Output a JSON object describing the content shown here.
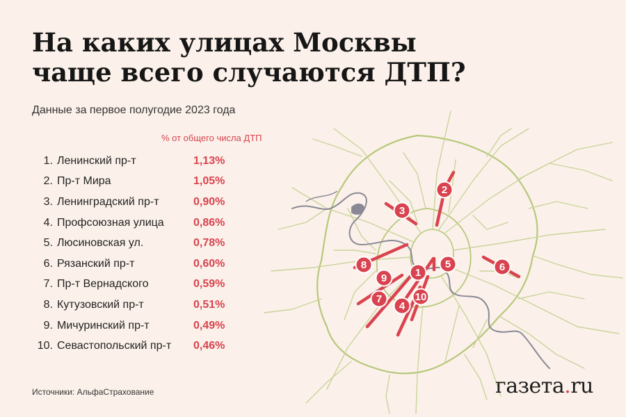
{
  "title_line1": "На каких улицах Москвы",
  "title_line2": "чаще всего случаются ДТП?",
  "subtitle": "Данные за первое полугодие 2023 года",
  "unit_note": "% от общего числа ДТП",
  "streets": [
    {
      "rank": "1.",
      "name": "Ленинский пр-т",
      "share": "1,13%",
      "share_value": 1.13,
      "badge": "1"
    },
    {
      "rank": "2.",
      "name": "Пр-т Мира",
      "share": "1,05%",
      "share_value": 1.05,
      "badge": "2"
    },
    {
      "rank": "3.",
      "name": "Ленинградский пр-т",
      "share": "0,90%",
      "share_value": 0.9,
      "badge": "3"
    },
    {
      "rank": "4.",
      "name": "Профсоюзная улица",
      "share": "0,86%",
      "share_value": 0.86,
      "badge": "4"
    },
    {
      "rank": "5.",
      "name": "Люсиновская ул.",
      "share": "0,78%",
      "share_value": 0.78,
      "badge": "5"
    },
    {
      "rank": "6.",
      "name": "Рязанский пр-т",
      "share": "0,60%",
      "share_value": 0.6,
      "badge": "6"
    },
    {
      "rank": "7.",
      "name": "Пр-т Вернадского",
      "share": "0,59%",
      "share_value": 0.59,
      "badge": "7"
    },
    {
      "rank": "8.",
      "name": "Кутузовский пр-т",
      "share": "0,51%",
      "share_value": 0.51,
      "badge": "8"
    },
    {
      "rank": "9.",
      "name": "Мичуринский пр-т",
      "share": "0,49%",
      "share_value": 0.49,
      "badge": "9"
    },
    {
      "rank": "10.",
      "name": "Севастопольский пр-т",
      "share": "0,46%",
      "share_value": 0.46,
      "badge": "10"
    }
  ],
  "source": "Источники: АльфаСтрахование",
  "logo_text": "газета",
  "logo_dot": ".",
  "logo_suffix": "ru",
  "colors": {
    "accent": "#d9434f",
    "background": "#fbf1ea",
    "road": "#c9d39a",
    "ring": "#b7c77a",
    "river": "#8a8895"
  }
}
